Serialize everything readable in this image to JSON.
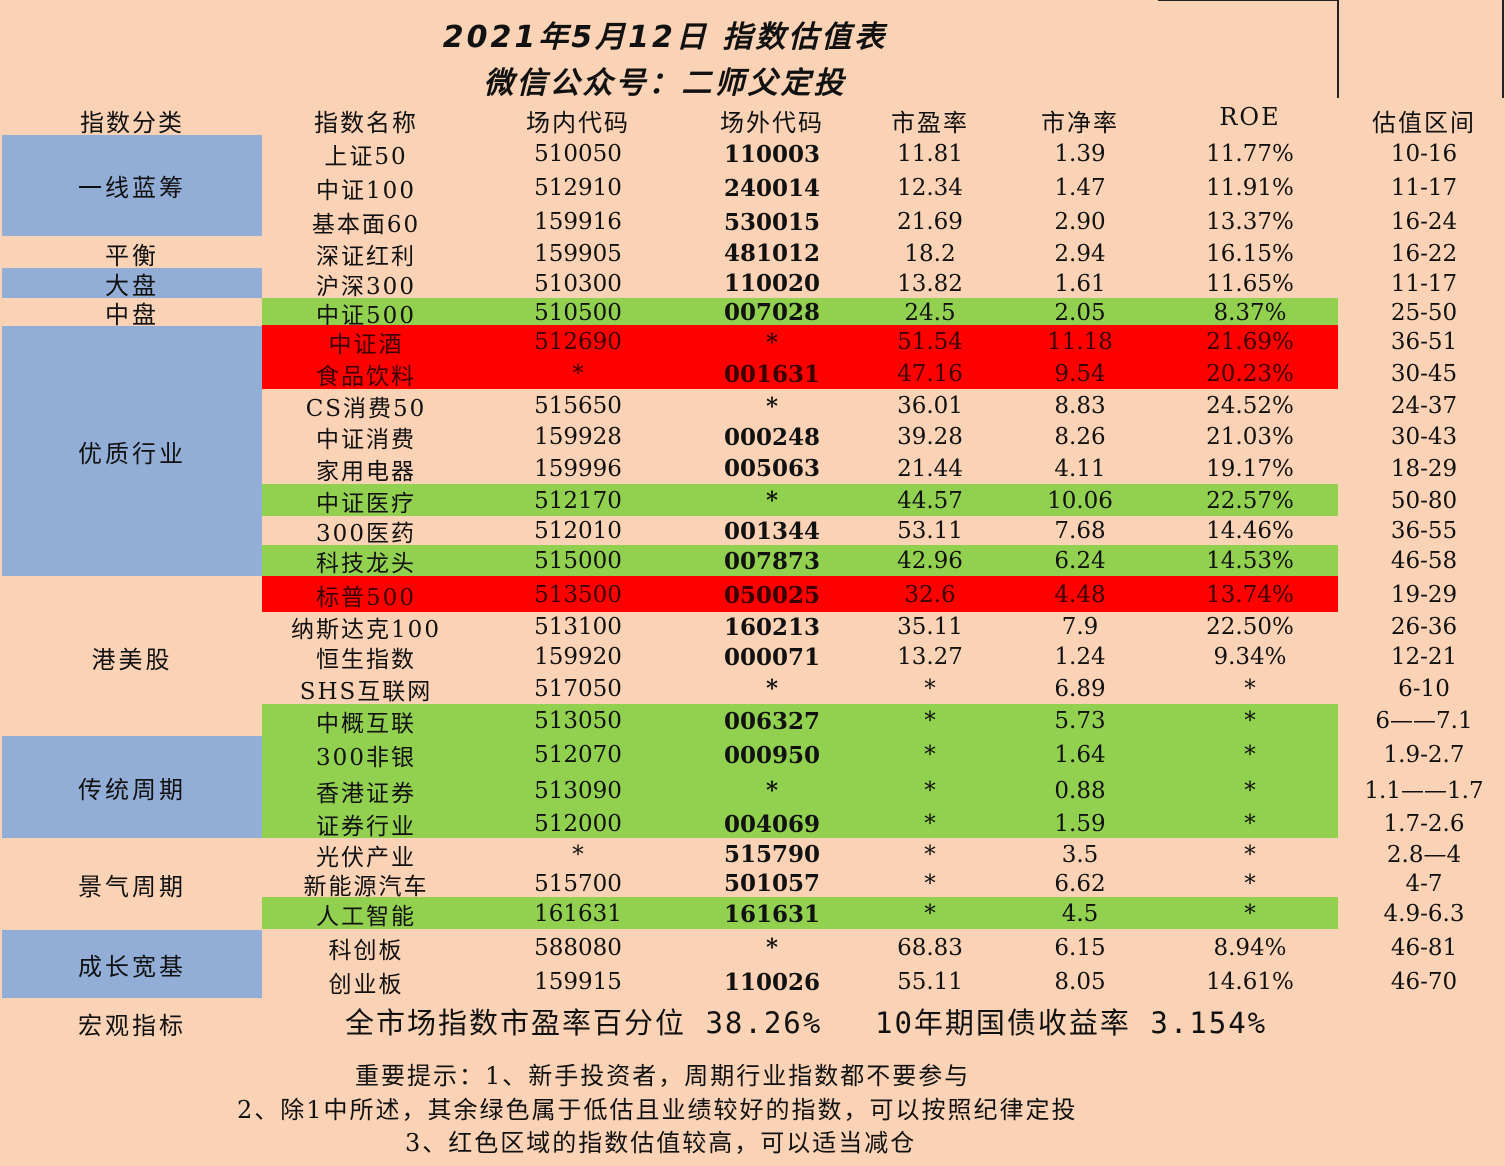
{
  "title_line1": "2021年5月12日 指数估值表",
  "title_line2": "微信公众号：二师父定投",
  "colors": {
    "background": "#FAD3B6",
    "category_blue": "#92ADD6",
    "green": "#92D050",
    "red": "#FF0000"
  },
  "headers": {
    "category": "指数分类",
    "name": "指数名称",
    "code_in": "场内代码",
    "code_out": "场外代码",
    "pe": "市盈率",
    "pb": "市净率",
    "roe": "ROE",
    "range": "估值区间"
  },
  "categories": [
    {
      "label": "一线蓝筹"
    },
    {
      "label": "平衡"
    },
    {
      "label": "大盘"
    },
    {
      "label": "中盘"
    },
    {
      "label": "优质行业"
    },
    {
      "label": "港美股"
    },
    {
      "label": "传统周期"
    },
    {
      "label": "景气周期"
    },
    {
      "label": "成长宽基"
    }
  ],
  "rows": [
    {
      "name": "上证50",
      "code_in": "510050",
      "code_out": "110003",
      "pe": "11.81",
      "pb": "1.39",
      "roe": "11.77%",
      "range": "10-16",
      "highlight": "none"
    },
    {
      "name": "中证100",
      "code_in": "512910",
      "code_out": "240014",
      "pe": "12.34",
      "pb": "1.47",
      "roe": "11.91%",
      "range": "11-17",
      "highlight": "none"
    },
    {
      "name": "基本面60",
      "code_in": "159916",
      "code_out": "530015",
      "pe": "21.69",
      "pb": "2.90",
      "roe": "13.37%",
      "range": "16-24",
      "highlight": "none"
    },
    {
      "name": "深证红利",
      "code_in": "159905",
      "code_out": "481012",
      "pe": "18.2",
      "pb": "2.94",
      "roe": "16.15%",
      "range": "16-22",
      "highlight": "none"
    },
    {
      "name": "沪深300",
      "code_in": "510300",
      "code_out": "110020",
      "pe": "13.82",
      "pb": "1.61",
      "roe": "11.65%",
      "range": "11-17",
      "highlight": "none"
    },
    {
      "name": "中证500",
      "code_in": "510500",
      "code_out": "007028",
      "pe": "24.5",
      "pb": "2.05",
      "roe": "8.37%",
      "range": "25-50",
      "highlight": "green"
    },
    {
      "name": "中证酒",
      "code_in": "512690",
      "code_out": "*",
      "pe": "51.54",
      "pb": "11.18",
      "roe": "21.69%",
      "range": "36-51",
      "highlight": "red"
    },
    {
      "name": "食品饮料",
      "code_in": "*",
      "code_out": "001631",
      "pe": "47.16",
      "pb": "9.54",
      "roe": "20.23%",
      "range": "30-45",
      "highlight": "red"
    },
    {
      "name": "CS消费50",
      "code_in": "515650",
      "code_out": "*",
      "pe": "36.01",
      "pb": "8.83",
      "roe": "24.52%",
      "range": "24-37",
      "highlight": "none"
    },
    {
      "name": "中证消费",
      "code_in": "159928",
      "code_out": "000248",
      "pe": "39.28",
      "pb": "8.26",
      "roe": "21.03%",
      "range": "30-43",
      "highlight": "none"
    },
    {
      "name": "家用电器",
      "code_in": "159996",
      "code_out": "005063",
      "pe": "21.44",
      "pb": "4.11",
      "roe": "19.17%",
      "range": "18-29",
      "highlight": "none"
    },
    {
      "name": "中证医疗",
      "code_in": "512170",
      "code_out": "*",
      "pe": "44.57",
      "pb": "10.06",
      "roe": "22.57%",
      "range": "50-80",
      "highlight": "green"
    },
    {
      "name": "300医药",
      "code_in": "512010",
      "code_out": "001344",
      "pe": "53.11",
      "pb": "7.68",
      "roe": "14.46%",
      "range": "36-55",
      "highlight": "none"
    },
    {
      "name": "科技龙头",
      "code_in": "515000",
      "code_out": "007873",
      "pe": "42.96",
      "pb": "6.24",
      "roe": "14.53%",
      "range": "46-58",
      "highlight": "green"
    },
    {
      "name": "标普500",
      "code_in": "513500",
      "code_out": "050025",
      "pe": "32.6",
      "pb": "4.48",
      "roe": "13.74%",
      "range": "19-29",
      "highlight": "red"
    },
    {
      "name": "纳斯达克100",
      "code_in": "513100",
      "code_out": "160213",
      "pe": "35.11",
      "pb": "7.9",
      "roe": "22.50%",
      "range": "26-36",
      "highlight": "none"
    },
    {
      "name": "恒生指数",
      "code_in": "159920",
      "code_out": "000071",
      "pe": "13.27",
      "pb": "1.24",
      "roe": "9.34%",
      "range": "12-21",
      "highlight": "none"
    },
    {
      "name": "SHS互联网",
      "code_in": "517050",
      "code_out": "*",
      "pe": "*",
      "pb": "6.89",
      "roe": "*",
      "range": "6-10",
      "highlight": "none"
    },
    {
      "name": "中概互联",
      "code_in": "513050",
      "code_out": "006327",
      "pe": "*",
      "pb": "5.73",
      "roe": "*",
      "range": "6——7.1",
      "highlight": "green"
    },
    {
      "name": "300非银",
      "code_in": "512070",
      "code_out": "000950",
      "pe": "*",
      "pb": "1.64",
      "roe": "*",
      "range": "1.9-2.7",
      "highlight": "green"
    },
    {
      "name": "香港证券",
      "code_in": "513090",
      "code_out": "*",
      "pe": "*",
      "pb": "0.88",
      "roe": "*",
      "range": "1.1——1.7",
      "highlight": "green"
    },
    {
      "name": "证券行业",
      "code_in": "512000",
      "code_out": "004069",
      "pe": "*",
      "pb": "1.59",
      "roe": "*",
      "range": "1.7-2.6",
      "highlight": "green"
    },
    {
      "name": "光伏产业",
      "code_in": "*",
      "code_out": "515790",
      "pe": "*",
      "pb": "3.5",
      "roe": "*",
      "range": "2.8—4",
      "highlight": "none"
    },
    {
      "name": "新能源汽车",
      "code_in": "515700",
      "code_out": "501057",
      "pe": "*",
      "pb": "6.62",
      "roe": "*",
      "range": "4-7",
      "highlight": "none"
    },
    {
      "name": "人工智能",
      "code_in": "161631",
      "code_out": "161631",
      "pe": "*",
      "pb": "4.5",
      "roe": "*",
      "range": "4.9-6.3",
      "highlight": "green"
    },
    {
      "name": "科创板",
      "code_in": "588080",
      "code_out": "*",
      "pe": "68.83",
      "pb": "6.15",
      "roe": "8.94%",
      "range": "46-81",
      "highlight": "none"
    },
    {
      "name": "创业板",
      "code_in": "159915",
      "code_out": "110026",
      "pe": "55.11",
      "pb": "8.05",
      "roe": "14.61%",
      "range": "46-70",
      "highlight": "none"
    }
  ],
  "macro": {
    "label": "宏观指标",
    "pe_percentile": "全市场指数市盈率百分位 38.26%",
    "bond_yield": "10年期国债收益率 3.154%"
  },
  "notes": [
    "重要提示：1、新手投资者，周期行业指数都不要参与",
    "2、除1中所述，其余绿色属于低估且业绩较好的指数，可以按照纪律定投",
    "3、红色区域的指数估值较高，可以适当减仓"
  ]
}
